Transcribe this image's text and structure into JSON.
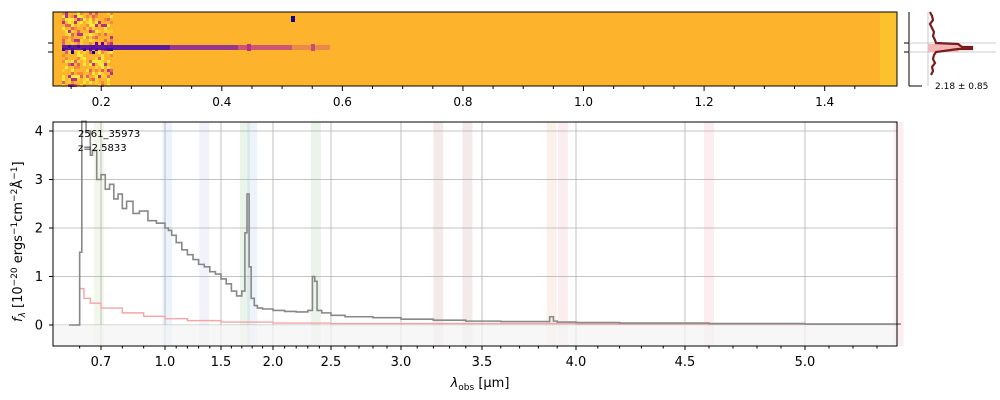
{
  "chart_data": [
    {
      "type": "heatmap",
      "panel": "2d-spectrum",
      "description_colormap": "plasma",
      "x_ticks": [
        "0.2",
        "0.4",
        "0.6",
        "0.8",
        "1.0",
        "1.2",
        "1.4"
      ],
      "x_tick_values": [
        0.2,
        0.4,
        0.6,
        0.8,
        1.0,
        1.2,
        1.4
      ],
      "xlim": [
        0.12,
        1.52
      ]
    },
    {
      "type": "line",
      "panel": "spatial-profile",
      "annotation": "2.18 ± 0.85"
    },
    {
      "type": "line",
      "panel": "1d-spectrum",
      "xlabel": "λ_obs [μm]",
      "xlabel_parts": {
        "lambda": "λ",
        "sub": "obs",
        "unit": " [μm]"
      },
      "ylabel": "f_λ [10^-20 ergs^-1 cm^-2 Å^-1]",
      "ylabel_parts": {
        "f": "f",
        "sub": "λ",
        "a": " [10",
        "e1": "−20",
        "b": " ergs",
        "e2": "−1",
        "c": "cm",
        "e3": "−2",
        "d": "Å",
        "e4": "−1",
        "e": "]"
      },
      "x_ticks": [
        "0.7",
        "1.0",
        "1.5",
        "2.0",
        "2.5",
        "3.0",
        "3.5",
        "4.0",
        "4.5",
        "5.0"
      ],
      "x_tick_values": [
        0.7,
        1.0,
        1.5,
        2.0,
        2.5,
        3.0,
        3.5,
        4.0,
        4.5,
        5.0
      ],
      "y_ticks": [
        "0",
        "1",
        "2",
        "3",
        "4"
      ],
      "y_tick_values": [
        0,
        1,
        2,
        3,
        4
      ],
      "ylim": [
        -0.42,
        4.2
      ],
      "xlim": [
        0.55,
        5.4
      ],
      "grid": true,
      "annotations": [
        "2561_35973",
        "z=2.5833"
      ],
      "shaded_bands": [
        {
          "center": 0.69,
          "color": "#8fbf5a"
        },
        {
          "center": 1.02,
          "color": "#6fa0d8"
        },
        {
          "center": 1.35,
          "color": "#9aa6d8"
        },
        {
          "center": 1.73,
          "color": "#5aaa5a"
        },
        {
          "center": 1.8,
          "color": "#6fa0d8"
        },
        {
          "center": 2.37,
          "color": "#5aaa5a"
        },
        {
          "center": 3.23,
          "color": "#b05a5a"
        },
        {
          "center": 3.41,
          "color": "#b05a5a"
        },
        {
          "center": 3.87,
          "color": "#e8955a"
        },
        {
          "center": 3.93,
          "color": "#e87a8a"
        },
        {
          "center": 4.6,
          "color": "#e87a8a"
        },
        {
          "center": 5.39,
          "color": "#e87a8a"
        }
      ],
      "series": [
        {
          "color": "#888888",
          "x": [
            0.55,
            0.58,
            0.6,
            0.61,
            0.63,
            0.65,
            0.66,
            0.68,
            0.7,
            0.72,
            0.74,
            0.76,
            0.78,
            0.8,
            0.82,
            0.85,
            0.88,
            0.92,
            0.96,
            1.0,
            1.03,
            1.06,
            1.1,
            1.15,
            1.2,
            1.25,
            1.3,
            1.35,
            1.4,
            1.45,
            1.5,
            1.55,
            1.6,
            1.65,
            1.7,
            1.73,
            1.75,
            1.77,
            1.79,
            1.82,
            1.85,
            1.9,
            2.0,
            2.1,
            2.2,
            2.3,
            2.34,
            2.36,
            2.38,
            2.42,
            2.5,
            2.6,
            2.8,
            3.0,
            3.2,
            3.4,
            3.6,
            3.8,
            3.86,
            3.88,
            3.9,
            4.0,
            4.2,
            4.4,
            4.6,
            4.8,
            5.0,
            5.2,
            5.4
          ],
          "y": [
            0.0,
            0.0,
            1.5,
            4.2,
            4.0,
            3.5,
            3.6,
            3.0,
            3.1,
            2.8,
            2.9,
            2.6,
            2.7,
            2.4,
            2.55,
            2.3,
            2.35,
            2.15,
            2.1,
            2.0,
            1.95,
            1.85,
            1.7,
            1.55,
            1.45,
            1.35,
            1.25,
            1.2,
            1.1,
            1.05,
            0.95,
            0.85,
            0.7,
            0.6,
            0.7,
            1.9,
            2.7,
            1.2,
            0.55,
            0.4,
            0.35,
            0.33,
            0.3,
            0.28,
            0.27,
            0.3,
            1.0,
            0.9,
            0.3,
            0.25,
            0.2,
            0.17,
            0.15,
            0.12,
            0.1,
            0.08,
            0.07,
            0.07,
            0.17,
            0.08,
            0.06,
            0.05,
            0.04,
            0.04,
            0.03,
            0.03,
            0.02,
            0.02,
            0.02
          ]
        },
        {
          "color": "#f4a6a6",
          "x": [
            0.58,
            0.6,
            0.62,
            0.65,
            0.7,
            0.8,
            0.9,
            1.0,
            1.2,
            1.5,
            2.0,
            2.5,
            3.0,
            4.0,
            5.0,
            5.4
          ],
          "y": [
            0.0,
            0.75,
            0.55,
            0.45,
            0.35,
            0.25,
            0.18,
            0.13,
            0.09,
            0.06,
            0.04,
            0.03,
            0.03,
            0.02,
            0.02,
            0.02
          ]
        }
      ]
    }
  ]
}
